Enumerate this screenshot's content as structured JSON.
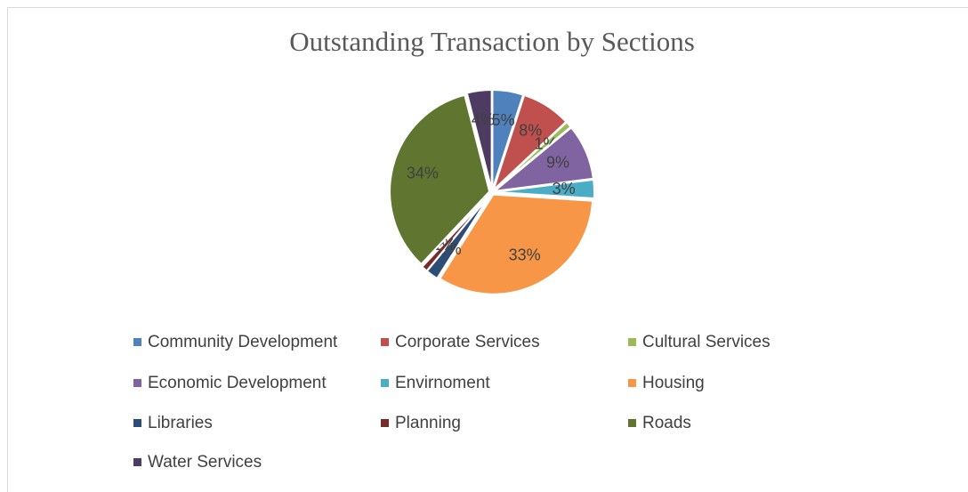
{
  "chart_data": {
    "type": "pie",
    "title": "Outstanding Transaction by Sections",
    "categories": [
      "Community Development",
      "Corporate Services",
      "Cultural Services",
      "Economic Development",
      "Envirnoment",
      "Housing",
      "Libraries",
      "Planning",
      "Roads",
      "Water Services"
    ],
    "values": [
      5,
      8,
      1,
      9,
      3,
      33,
      2,
      1,
      34,
      4
    ],
    "value_labels": [
      "5%",
      "8%",
      "1%",
      "9%",
      "3%",
      "33%",
      "2%",
      "1%",
      "34%",
      "4%"
    ],
    "colors": [
      "#4f81bd",
      "#c0504d",
      "#9bbb59",
      "#8064a2",
      "#4bacc6",
      "#f79646",
      "#2c4d75",
      "#772c2a",
      "#5f7530",
      "#4d3b62"
    ],
    "legend": "bottom"
  }
}
